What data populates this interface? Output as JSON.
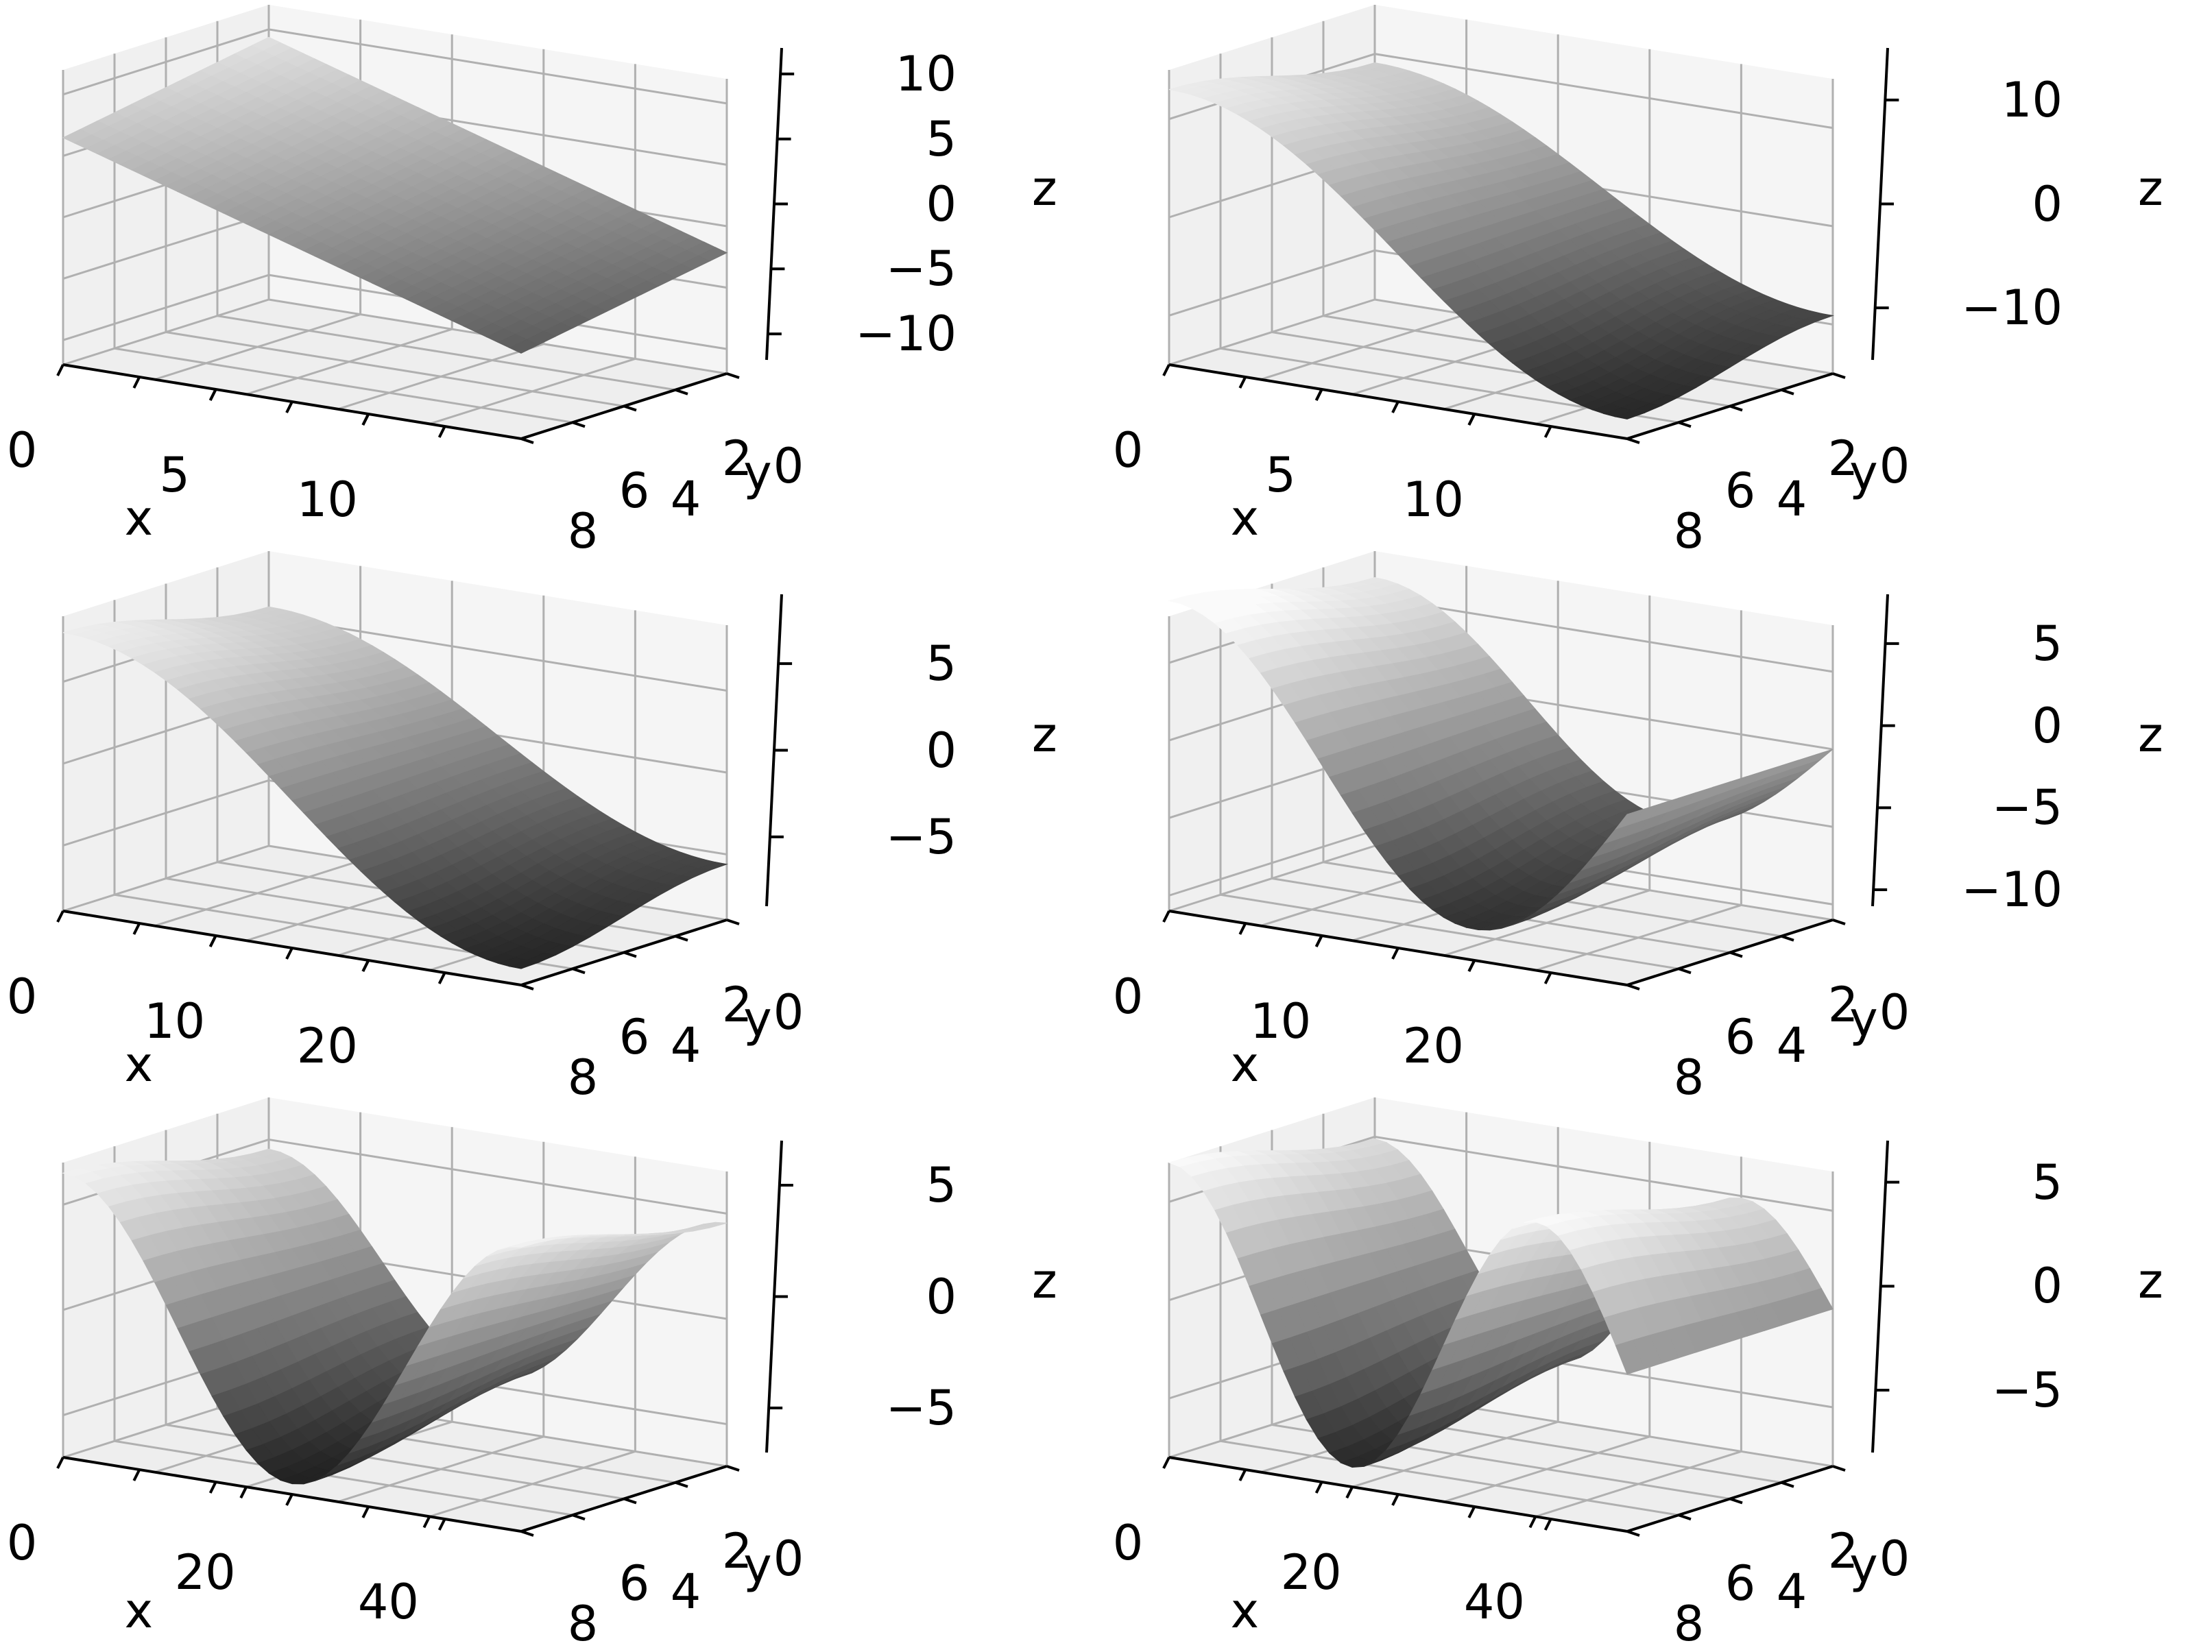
{
  "chart_data": [
    {
      "type": "surface",
      "panel": "row-1-left",
      "xlabel": "x",
      "ylabel": "y",
      "zlabel": "z",
      "xticks": [
        0,
        5,
        10
      ],
      "yticks": [
        0,
        2,
        4,
        6,
        8
      ],
      "zticks": [
        -10,
        -5,
        0,
        5,
        10
      ],
      "xlim": [
        0,
        15
      ],
      "ylim": [
        0,
        8
      ],
      "zlim": [
        -12,
        12
      ],
      "surface": {
        "kind": "tilted-plane",
        "periods": 0.0,
        "amplitude": 12
      }
    },
    {
      "type": "surface",
      "panel": "row-1-right",
      "xlabel": "x",
      "ylabel": "y",
      "zlabel": "z",
      "xticks": [
        0,
        5,
        10
      ],
      "yticks": [
        0,
        2,
        4,
        6,
        8
      ],
      "zticks": [
        -10,
        0,
        10
      ],
      "xlim": [
        0,
        15
      ],
      "ylim": [
        0,
        8
      ],
      "zlim": [
        -15,
        15
      ],
      "surface": {
        "kind": "wave",
        "periods": 0.5,
        "amplitude": 13
      }
    },
    {
      "type": "surface",
      "panel": "row-2-left",
      "xlabel": "x",
      "ylabel": "y",
      "zlabel": "z",
      "xticks": [
        0,
        10,
        20
      ],
      "yticks": [
        0,
        2,
        4,
        6,
        8
      ],
      "zticks": [
        -5,
        0,
        5
      ],
      "xlim": [
        0,
        30
      ],
      "ylim": [
        0,
        8
      ],
      "zlim": [
        -9,
        9
      ],
      "surface": {
        "kind": "wave",
        "periods": 0.5,
        "amplitude": 8
      }
    },
    {
      "type": "surface",
      "panel": "row-2-right",
      "xlabel": "x",
      "ylabel": "y",
      "zlabel": "z",
      "xticks": [
        0,
        10,
        20
      ],
      "yticks": [
        0,
        2,
        4,
        6,
        8
      ],
      "zticks": [
        -10,
        -5,
        0,
        5
      ],
      "xlim": [
        0,
        30
      ],
      "ylim": [
        0,
        8
      ],
      "zlim": [
        -11,
        8
      ],
      "surface": {
        "kind": "wave",
        "periods": 0.75,
        "amplitude": 9
      }
    },
    {
      "type": "surface",
      "panel": "row-3-left",
      "xlabel": "x",
      "ylabel": "y",
      "zlabel": "z",
      "xticks": [
        0,
        20,
        40
      ],
      "yticks": [
        0,
        2,
        4,
        6,
        8
      ],
      "zticks": [
        -5,
        0,
        5
      ],
      "xlim": [
        0,
        50
      ],
      "ylim": [
        0,
        8
      ],
      "zlim": [
        -7,
        7
      ],
      "surface": {
        "kind": "wave",
        "periods": 1.0,
        "amplitude": 6.5
      }
    },
    {
      "type": "surface",
      "panel": "row-3-right",
      "xlabel": "x",
      "ylabel": "y",
      "zlabel": "z",
      "xticks": [
        0,
        20,
        40
      ],
      "yticks": [
        0,
        2,
        4,
        6,
        8
      ],
      "zticks": [
        -5,
        0,
        5
      ],
      "xlim": [
        0,
        50
      ],
      "ylim": [
        0,
        8
      ],
      "zlim": [
        -8,
        7
      ],
      "surface": {
        "kind": "wave",
        "periods": 1.25,
        "amplitude": 7
      }
    }
  ]
}
